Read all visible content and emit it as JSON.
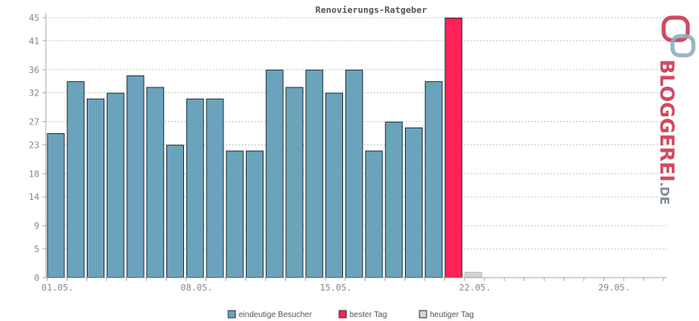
{
  "chart_data": {
    "type": "bar",
    "title": "Renovierungs-Ratgeber",
    "xlabel": "",
    "ylabel": "",
    "ylim": [
      0,
      45
    ],
    "yticks": [
      0,
      5,
      9,
      14,
      18,
      23,
      27,
      32,
      36,
      41,
      45
    ],
    "x_tick_labels": [
      "01.05.",
      "08.05.",
      "15.05.",
      "22.05.",
      "29.05."
    ],
    "x_tick_days": [
      1,
      8,
      15,
      22,
      29
    ],
    "categories": [
      "01.05.",
      "02.05.",
      "03.05.",
      "04.05.",
      "05.05.",
      "06.05.",
      "07.05.",
      "08.05.",
      "09.05.",
      "10.05.",
      "11.05.",
      "12.05.",
      "13.05.",
      "14.05.",
      "15.05.",
      "16.05.",
      "17.05.",
      "18.05.",
      "19.05.",
      "20.05.",
      "21.05.",
      "22.05.",
      "23.05.",
      "24.05.",
      "25.05.",
      "26.05.",
      "27.05.",
      "28.05.",
      "29.05.",
      "30.05.",
      "31.05."
    ],
    "series": [
      {
        "name": "eindeutige Besucher",
        "color": "#6aa3bb",
        "values": [
          25,
          34,
          31,
          32,
          35,
          33,
          23,
          31,
          31,
          22,
          22,
          36,
          33,
          36,
          32,
          36,
          22,
          27,
          26,
          34,
          null,
          null,
          null,
          null,
          null,
          null,
          null,
          null,
          null,
          null,
          null
        ]
      },
      {
        "name": "bester Tag",
        "color": "#ff2255",
        "values": [
          null,
          null,
          null,
          null,
          null,
          null,
          null,
          null,
          null,
          null,
          null,
          null,
          null,
          null,
          null,
          null,
          null,
          null,
          null,
          null,
          45,
          null,
          null,
          null,
          null,
          null,
          null,
          null,
          null,
          null,
          null
        ]
      },
      {
        "name": "heutiger Tag",
        "color": "#d4d4d4",
        "values": [
          null,
          null,
          null,
          null,
          null,
          null,
          null,
          null,
          null,
          null,
          null,
          null,
          null,
          null,
          null,
          null,
          null,
          null,
          null,
          null,
          null,
          1,
          null,
          null,
          null,
          null,
          null,
          null,
          null,
          null,
          null
        ]
      }
    ],
    "grid": true,
    "legend_position": "bottom-center"
  },
  "logo": {
    "text_main": "BLOGGEREI",
    "text_suffix": ".DE",
    "color_main": "#d04a62",
    "color_suffix": "#7a8ea0"
  }
}
